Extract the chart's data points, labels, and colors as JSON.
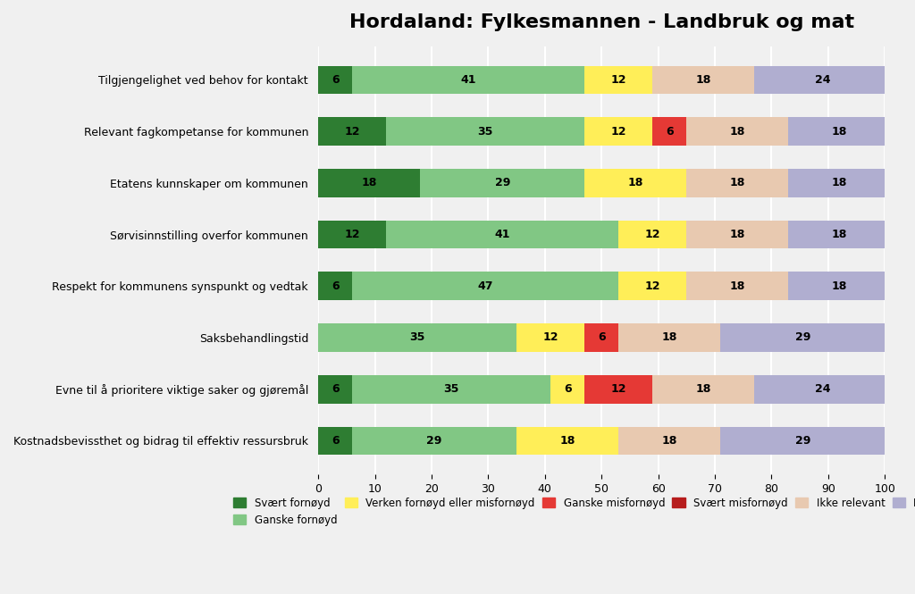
{
  "title": "Hordaland: Fylkesmannen - Landbruk og mat",
  "categories": [
    "Tilgjengelighet ved behov for kontakt",
    "Relevant fagkompetanse for kommunen",
    "Etatens kunnskaper om kommunen",
    "Sørvisinnstilling overfor kommunen",
    "Respekt for kommunens synspunkt og vedtak",
    "Saksbehandlingstid",
    "Evne til å prioritere viktige saker og gjøremål",
    "Kostnadsbevissthet og bidrag til effektiv ressursbruk"
  ],
  "series": {
    "Svært fornøyd": [
      6,
      12,
      18,
      12,
      6,
      0,
      6,
      6
    ],
    "Ganske fornøyd": [
      41,
      35,
      29,
      41,
      47,
      35,
      35,
      29
    ],
    "Verken fornøyd eller misfornøyd": [
      12,
      12,
      18,
      12,
      12,
      12,
      6,
      18
    ],
    "Ganske misfornøyd": [
      0,
      6,
      0,
      0,
      0,
      6,
      12,
      0
    ],
    "Svært misfornøyd": [
      0,
      0,
      0,
      0,
      0,
      0,
      0,
      0
    ],
    "Ikke relevant": [
      18,
      18,
      18,
      18,
      18,
      18,
      18,
      18
    ],
    "Ikke sikker": [
      24,
      18,
      18,
      18,
      18,
      29,
      24,
      29
    ]
  },
  "colors": {
    "Svært fornøyd": "#2e7d32",
    "Ganske fornøyd": "#81c784",
    "Verken fornøyd eller misfornøyd": "#ffee58",
    "Ganske misfornøyd": "#e53935",
    "Svært misfornøyd": "#b71c1c",
    "Ikke relevant": "#e8c9b0",
    "Ikke sikker": "#b0aed0"
  },
  "xlim": [
    0,
    100
  ],
  "xticks": [
    0,
    10,
    20,
    30,
    40,
    50,
    60,
    70,
    80,
    90,
    100
  ],
  "bar_height": 0.55,
  "background_color": "#f0f0f0",
  "grid_color": "#ffffff",
  "title_fontsize": 16,
  "label_fontsize": 9,
  "tick_fontsize": 9,
  "legend_fontsize": 8.5
}
